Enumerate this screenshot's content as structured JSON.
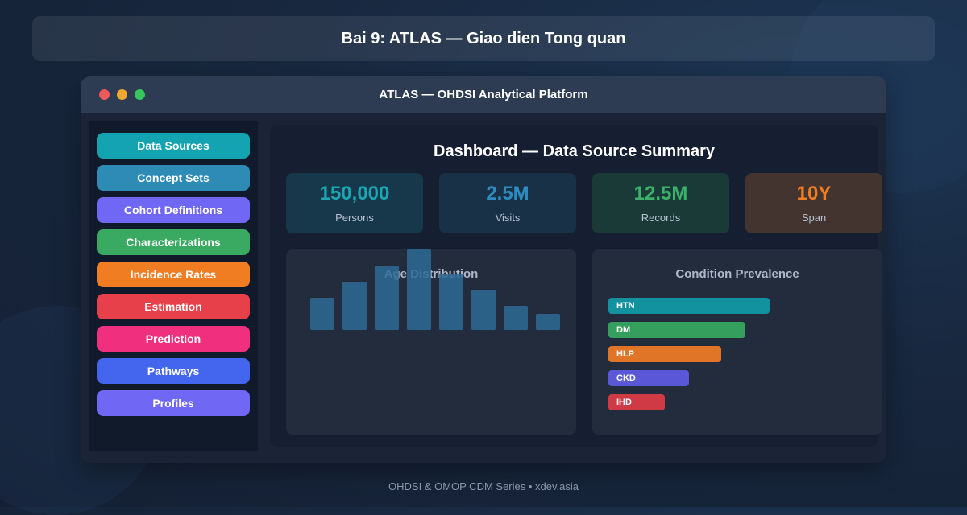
{
  "banner": {
    "title": "Bai 9: ATLAS — Giao dien Tong quan"
  },
  "window": {
    "title": "ATLAS — OHDSI Analytical Platform"
  },
  "sidebar": {
    "items": [
      {
        "label": "Data Sources",
        "color": "#14a3b0"
      },
      {
        "label": "Concept Sets",
        "color": "#2e8bb5"
      },
      {
        "label": "Cohort Definitions",
        "color": "#7068f5"
      },
      {
        "label": "Characterizations",
        "color": "#3aa962"
      },
      {
        "label": "Incidence Rates",
        "color": "#f07d22"
      },
      {
        "label": "Estimation",
        "color": "#e8404a"
      },
      {
        "label": "Prediction",
        "color": "#f0307e"
      },
      {
        "label": "Pathways",
        "color": "#4466ee"
      },
      {
        "label": "Profiles",
        "color": "#7068f5"
      }
    ]
  },
  "dashboard": {
    "title": "Dashboard — Data Source Summary",
    "stats": [
      {
        "value": "150,000",
        "label": "Persons",
        "value_color": "#1aa6b2",
        "bg": "#16384a"
      },
      {
        "value": "2.5M",
        "label": "Visits",
        "value_color": "#2e8bc0",
        "bg": "#193146"
      },
      {
        "value": "12.5M",
        "label": "Records",
        "value_color": "#3ab26a",
        "bg": "#1a3a37"
      },
      {
        "value": "10Y",
        "label": "Span",
        "value_color": "#f07d22",
        "bg": "#43342f"
      }
    ]
  },
  "age_chart": {
    "title": "Age Distribution",
    "color": "#2e6b94",
    "chart_data": {
      "type": "bar",
      "title": "Age Distribution",
      "values": [
        40,
        60,
        80,
        100,
        70,
        50,
        30,
        20
      ]
    }
  },
  "condition_chart": {
    "title": "Condition Prevalence",
    "chart_data": {
      "type": "bar",
      "orientation": "horizontal",
      "title": "Condition Prevalence",
      "categories": [
        "HTN",
        "DM",
        "HLP",
        "CKD",
        "IHD"
      ],
      "values": [
        200,
        170,
        140,
        100,
        70
      ],
      "colors": [
        "#12919f",
        "#35a05d",
        "#e07427",
        "#5a58d8",
        "#cf3a45"
      ]
    }
  },
  "footer": {
    "text": "OHDSI & OMOP CDM Series • xdev.asia"
  }
}
